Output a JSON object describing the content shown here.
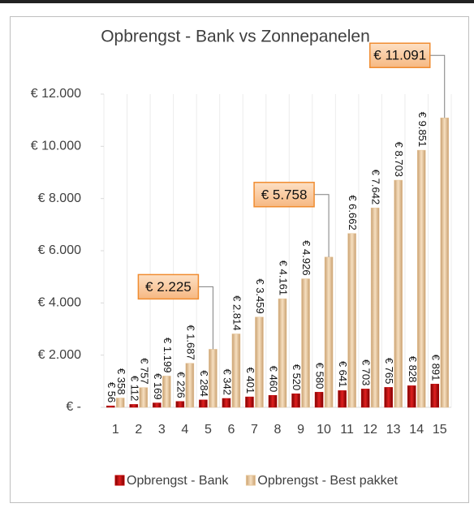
{
  "chart_data": {
    "type": "bar",
    "title": "Opbrengst - Bank vs Zonnepanelen",
    "categories": [
      "1",
      "2",
      "3",
      "4",
      "5",
      "6",
      "7",
      "8",
      "9",
      "10",
      "11",
      "12",
      "13",
      "14",
      "15"
    ],
    "series": [
      {
        "name": "Opbrengst - Bank",
        "color": "#c00000",
        "values": [
          56,
          112,
          169,
          226,
          284,
          342,
          401,
          460,
          520,
          580,
          641,
          703,
          765,
          828,
          891
        ],
        "value_labels": [
          "€ 56",
          "€ 112",
          "€ 169",
          "€ 226",
          "€ 284",
          "€ 342",
          "€ 401",
          "€ 460",
          "€ 520",
          "€ 580",
          "€ 641",
          "€ 703",
          "€ 765",
          "€ 828",
          "€ 891"
        ]
      },
      {
        "name": "Opbrengst - Best pakket",
        "color": "#e6c496",
        "values": [
          358,
          757,
          1199,
          1687,
          2225,
          2814,
          3459,
          4161,
          4926,
          5758,
          6662,
          7642,
          8703,
          9851,
          11091
        ],
        "value_labels": [
          "€ 358",
          "€ 757",
          "€ 1.199",
          "€ 1.687",
          "€ 2.225",
          "€ 2.814",
          "€ 3.459",
          "€ 4.161",
          "€ 4.926",
          "€ 5.758",
          "€ 6.662",
          "€ 7.642",
          "€ 8.703",
          "€ 9.851",
          "€ 11.091"
        ],
        "callouts": [
          4,
          9,
          14
        ]
      }
    ],
    "ylim": [
      0,
      12000
    ],
    "yticks": [
      {
        "value": 0,
        "label": "€ -"
      },
      {
        "value": 2000,
        "label": "€ 2.000"
      },
      {
        "value": 4000,
        "label": "€ 4.000"
      },
      {
        "value": 6000,
        "label": "€ 6.000"
      },
      {
        "value": 8000,
        "label": "€ 8.000"
      },
      {
        "value": 10000,
        "label": "€ 10.000"
      },
      {
        "value": 12000,
        "label": "€ 12.000"
      }
    ],
    "legend": "bottom"
  }
}
